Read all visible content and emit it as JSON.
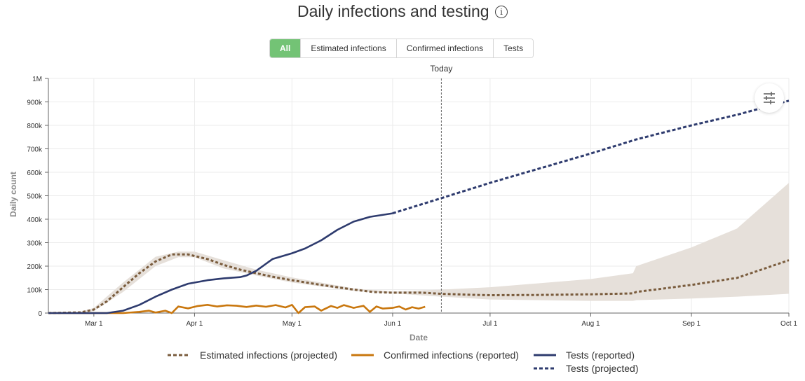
{
  "header": {
    "title": "Daily infections and testing",
    "info_icon": "info-icon"
  },
  "tabs": [
    {
      "label": "All",
      "active": true
    },
    {
      "label": "Estimated infections",
      "active": false
    },
    {
      "label": "Confirmed infections",
      "active": false
    },
    {
      "label": "Tests",
      "active": false
    }
  ],
  "today_label": "Today",
  "settings_icon": "sliders-icon",
  "colors": {
    "estimated": "#7a5c3d",
    "band": "#e6e0da",
    "confirmed": "#c9770e",
    "tests": "#2e3b6e",
    "active_tab": "#73c375"
  },
  "legend": [
    {
      "label": "Estimated infections (projected)",
      "style": "dashed",
      "color": "#7a5c3d"
    },
    {
      "label": "Confirmed infections (reported)",
      "style": "solid",
      "color": "#c9770e"
    },
    {
      "label": "Tests (reported)",
      "style": "solid",
      "color": "#2e3b6e"
    },
    {
      "label": "Tests (projected)",
      "style": "dashed",
      "color": "#2e3b6e"
    }
  ],
  "chart_data": {
    "type": "line",
    "title": "Daily infections and testing",
    "xlabel": "Date",
    "ylabel": "Daily count",
    "x_ticks": [
      "Mar 1",
      "Apr 1",
      "May 1",
      "Jun 1",
      "Jul 1",
      "Aug 1",
      "Sep 1",
      "Oct 1"
    ],
    "y_ticks": [
      "0",
      "100k",
      "200k",
      "300k",
      "400k",
      "500k",
      "600k",
      "700k",
      "800k",
      "900k",
      "1M"
    ],
    "ylim": [
      0,
      1000000
    ],
    "grid": true,
    "today_marker": "Jun 16",
    "legend_position": "bottom",
    "series": [
      {
        "name": "Estimated infections (projected)",
        "style": "dashed",
        "points": [
          [
            "Feb 15",
            0
          ],
          [
            "Feb 25",
            3000
          ],
          [
            "Mar 1",
            15000
          ],
          [
            "Mar 5",
            50000
          ],
          [
            "Mar 10",
            110000
          ],
          [
            "Mar 15",
            170000
          ],
          [
            "Mar 20",
            220000
          ],
          [
            "Mar 25",
            250000
          ],
          [
            "Mar 30",
            250000
          ],
          [
            "Apr 5",
            230000
          ],
          [
            "Apr 10",
            205000
          ],
          [
            "Apr 15",
            185000
          ],
          [
            "Apr 20",
            170000
          ],
          [
            "Apr 25",
            155000
          ],
          [
            "May 1",
            140000
          ],
          [
            "May 10",
            120000
          ],
          [
            "May 20",
            100000
          ],
          [
            "May 26",
            90000
          ],
          [
            "Jun 1",
            87000
          ],
          [
            "Jun 10",
            87000
          ],
          [
            "Jun 16",
            82000
          ],
          [
            "Jun 25",
            78000
          ],
          [
            "Jul 1",
            76000
          ],
          [
            "Jul 15",
            77000
          ],
          [
            "Aug 1",
            80000
          ],
          [
            "Aug 14",
            84000
          ],
          [
            "Aug 15",
            90000
          ],
          [
            "Sep 1",
            120000
          ],
          [
            "Sep 15",
            150000
          ],
          [
            "Oct 1",
            225000
          ]
        ],
        "band_upper": [
          [
            "Feb 15",
            0
          ],
          [
            "Feb 25",
            5000
          ],
          [
            "Mar 1",
            22000
          ],
          [
            "Mar 10",
            130000
          ],
          [
            "Mar 20",
            240000
          ],
          [
            "Mar 27",
            262000
          ],
          [
            "Apr 1",
            262000
          ],
          [
            "Apr 10",
            225000
          ],
          [
            "Apr 20",
            185000
          ],
          [
            "May 1",
            152000
          ],
          [
            "May 20",
            105000
          ],
          [
            "Jun 1",
            92000
          ],
          [
            "Jun 16",
            100000
          ],
          [
            "Jul 1",
            110000
          ],
          [
            "Aug 1",
            145000
          ],
          [
            "Aug 14",
            170000
          ],
          [
            "Aug 15",
            200000
          ],
          [
            "Sep 1",
            280000
          ],
          [
            "Sep 15",
            360000
          ],
          [
            "Oct 1",
            555000
          ]
        ],
        "band_lower": [
          [
            "Feb 15",
            0
          ],
          [
            "Feb 25",
            1500
          ],
          [
            "Mar 1",
            8000
          ],
          [
            "Mar 10",
            90000
          ],
          [
            "Mar 20",
            200000
          ],
          [
            "Mar 27",
            238000
          ],
          [
            "Apr 1",
            238000
          ],
          [
            "Apr 10",
            190000
          ],
          [
            "Apr 20",
            160000
          ],
          [
            "May 1",
            130000
          ],
          [
            "May 20",
            95000
          ],
          [
            "Jun 1",
            84000
          ],
          [
            "Jun 16",
            70000
          ],
          [
            "Jul 1",
            58000
          ],
          [
            "Aug 1",
            52000
          ],
          [
            "Aug 14",
            52000
          ],
          [
            "Aug 15",
            55000
          ],
          [
            "Sep 1",
            62000
          ],
          [
            "Sep 15",
            70000
          ],
          [
            "Oct 1",
            82000
          ]
        ]
      },
      {
        "name": "Confirmed infections (reported)",
        "style": "solid",
        "points": [
          [
            "Feb 15",
            0
          ],
          [
            "Mar 10",
            0
          ],
          [
            "Mar 15",
            5000
          ],
          [
            "Mar 18",
            10000
          ],
          [
            "Mar 20",
            2000
          ],
          [
            "Mar 23",
            10000
          ],
          [
            "Mar 25",
            0
          ],
          [
            "Mar 27",
            28000
          ],
          [
            "Mar 30",
            20000
          ],
          [
            "Apr 2",
            30000
          ],
          [
            "Apr 5",
            35000
          ],
          [
            "Apr 8",
            28000
          ],
          [
            "Apr 11",
            33000
          ],
          [
            "Apr 14",
            31000
          ],
          [
            "Apr 17",
            26000
          ],
          [
            "Apr 20",
            32000
          ],
          [
            "Apr 23",
            27000
          ],
          [
            "Apr 26",
            34000
          ],
          [
            "Apr 29",
            24000
          ],
          [
            "May 1",
            35000
          ],
          [
            "May 3",
            0
          ],
          [
            "May 5",
            25000
          ],
          [
            "May 8",
            28000
          ],
          [
            "May 10",
            10000
          ],
          [
            "May 13",
            30000
          ],
          [
            "May 15",
            22000
          ],
          [
            "May 17",
            34000
          ],
          [
            "May 20",
            22000
          ],
          [
            "May 23",
            31000
          ],
          [
            "May 25",
            5000
          ],
          [
            "May 27",
            28000
          ],
          [
            "May 29",
            19000
          ],
          [
            "Jun 1",
            22000
          ],
          [
            "Jun 3",
            28000
          ],
          [
            "Jun 5",
            15000
          ],
          [
            "Jun 7",
            25000
          ],
          [
            "Jun 9",
            19000
          ],
          [
            "Jun 11",
            27000
          ]
        ]
      },
      {
        "name": "Tests (reported)",
        "style": "solid",
        "points": [
          [
            "Feb 15",
            0
          ],
          [
            "Mar 5",
            0
          ],
          [
            "Mar 10",
            10000
          ],
          [
            "Mar 15",
            35000
          ],
          [
            "Mar 20",
            70000
          ],
          [
            "Mar 25",
            100000
          ],
          [
            "Mar 30",
            125000
          ],
          [
            "Apr 5",
            140000
          ],
          [
            "Apr 10",
            148000
          ],
          [
            "Apr 15",
            153000
          ],
          [
            "Apr 17",
            160000
          ],
          [
            "Apr 20",
            180000
          ],
          [
            "Apr 25",
            230000
          ],
          [
            "May 1",
            255000
          ],
          [
            "May 5",
            275000
          ],
          [
            "May 10",
            310000
          ],
          [
            "May 15",
            355000
          ],
          [
            "May 20",
            390000
          ],
          [
            "May 25",
            410000
          ],
          [
            "Jun 1",
            425000
          ]
        ]
      },
      {
        "name": "Tests (projected)",
        "style": "dashed",
        "points": [
          [
            "Jun 1",
            425000
          ],
          [
            "Jun 16",
            490000
          ],
          [
            "Jul 1",
            555000
          ],
          [
            "Aug 1",
            680000
          ],
          [
            "Aug 15",
            740000
          ],
          [
            "Sep 1",
            800000
          ],
          [
            "Sep 15",
            845000
          ],
          [
            "Oct 1",
            905000
          ]
        ]
      }
    ]
  }
}
